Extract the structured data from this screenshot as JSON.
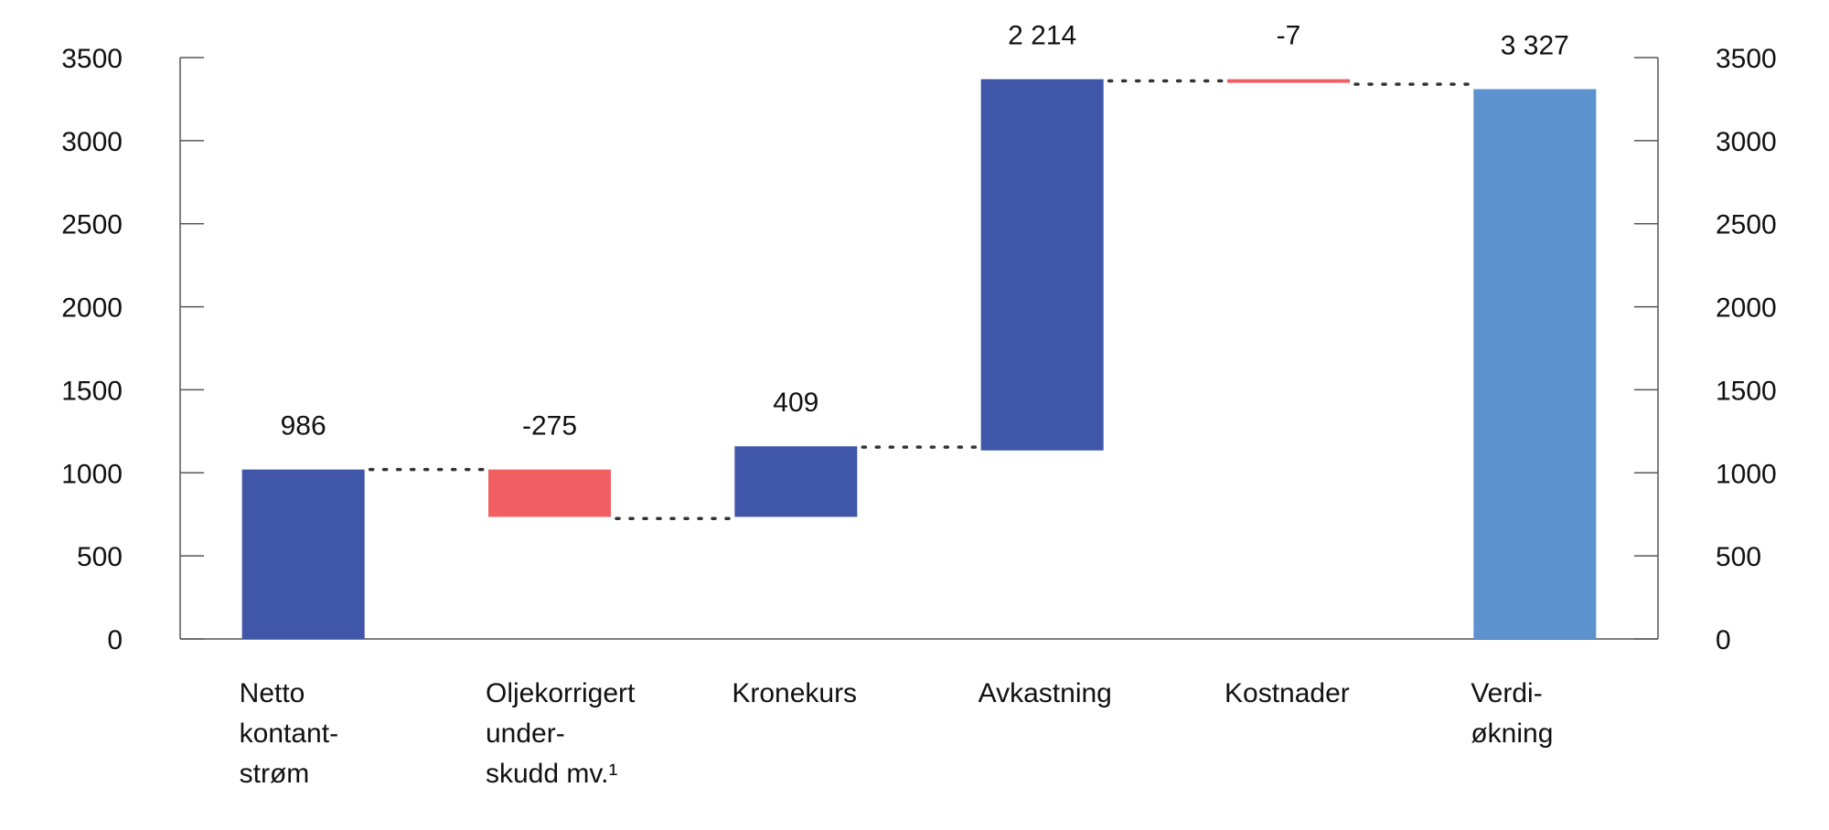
{
  "chart_data": {
    "type": "bar",
    "subtype": "waterfall",
    "title": "",
    "xlabel": "",
    "ylabel": "",
    "ylim": [
      0,
      3500
    ],
    "yticks": [
      0,
      500,
      1000,
      1500,
      2000,
      2500,
      3000,
      3500
    ],
    "dual_y_axis": true,
    "grid": false,
    "legend": "none",
    "categories": [
      [
        "Netto",
        "kontant-",
        "strøm"
      ],
      [
        "Oljekorrigert",
        "under-",
        "skudd mv.¹"
      ],
      [
        "Kronekurs"
      ],
      [
        "Avkastning"
      ],
      [
        "Kostnader"
      ],
      [
        "Verdi-",
        "økning"
      ]
    ],
    "bars": [
      {
        "start": 0,
        "end": 1020,
        "label": "986",
        "color": "#4056a8"
      },
      {
        "start": 1020,
        "end": 735,
        "label": "-275",
        "color": "#f25f63"
      },
      {
        "start": 735,
        "end": 1160,
        "label": "409",
        "color": "#4056a8"
      },
      {
        "start": 1135,
        "end": 3370,
        "label": "2 214",
        "color": "#4056a8"
      },
      {
        "start": 3370,
        "end": 3355,
        "label": "-7",
        "color": "#f25f63"
      },
      {
        "start": 0,
        "end": 3310,
        "label": "3 327",
        "color": "#5c92ce"
      }
    ],
    "connectors": [
      {
        "from": 0,
        "to": 1,
        "value": 1020
      },
      {
        "from": 1,
        "to": 2,
        "value": 725
      },
      {
        "from": 2,
        "to": 3,
        "value": 1155
      },
      {
        "from": 3,
        "to": 4,
        "value": 3360
      },
      {
        "from": 4,
        "to": 5,
        "value": 3340
      }
    ]
  }
}
